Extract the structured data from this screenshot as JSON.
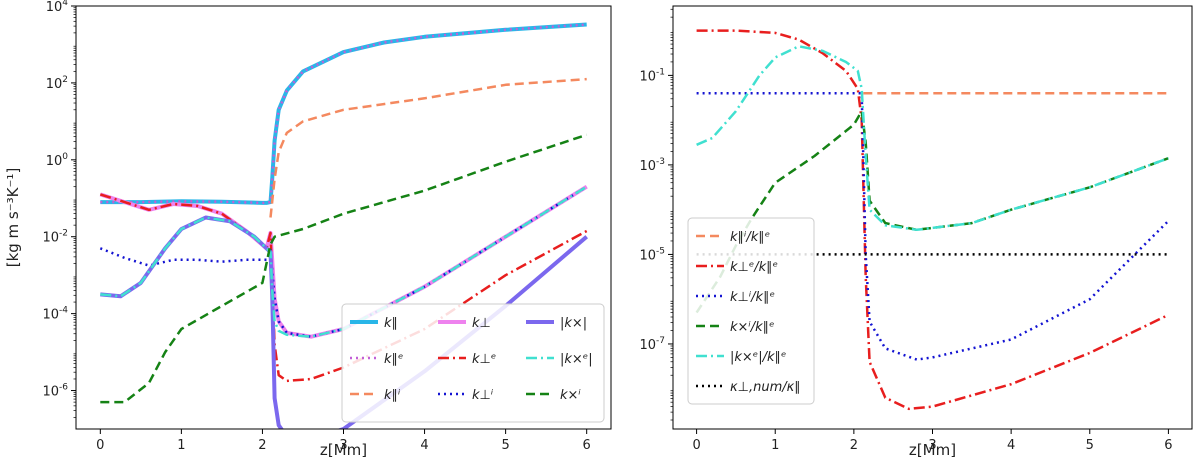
{
  "chart_data": [
    {
      "type": "line",
      "panel": "left",
      "yscale": "log",
      "ylabel": "[kg m s⁻³K⁻¹]",
      "xlabel": "z[Mm]",
      "xlim": [
        -0.3,
        6.3
      ],
      "ylim_exp": [
        -7,
        4
      ],
      "xticks": [
        0,
        1,
        2,
        3,
        4,
        5,
        6
      ],
      "yticks_exp": [
        -6,
        -4,
        -2,
        0,
        2,
        4
      ],
      "legend": {
        "position": "lower-right",
        "columns": 3
      },
      "series": [
        {
          "name": "k∥",
          "color": "#29b6e8",
          "dash": "solid",
          "width": 4,
          "x": [
            0,
            0.5,
            1,
            1.5,
            2,
            2.05,
            2.1,
            2.12,
            2.15,
            2.2,
            2.3,
            2.5,
            3,
            3.5,
            4,
            5,
            6
          ],
          "logy": [
            -1.1,
            -1.1,
            -1.08,
            -1.09,
            -1.12,
            -1.12,
            -1.1,
            -0.5,
            0.5,
            1.3,
            1.8,
            2.3,
            2.8,
            3.05,
            3.2,
            3.38,
            3.52
          ]
        },
        {
          "name": "k∥ᵉ",
          "color": "#c25fd6",
          "dash": "dot",
          "width": 2.5,
          "x": [
            0,
            0.5,
            1,
            1.5,
            2,
            2.05,
            2.1,
            2.12,
            2.15,
            2.2,
            2.3,
            2.5,
            3,
            3.5,
            4,
            5,
            6
          ],
          "logy": [
            -1.1,
            -1.1,
            -1.08,
            -1.09,
            -1.12,
            -1.12,
            -1.1,
            -0.5,
            0.5,
            1.3,
            1.8,
            2.3,
            2.8,
            3.05,
            3.2,
            3.38,
            3.52
          ]
        },
        {
          "name": "k∥ⁱ",
          "color": "#f4895f",
          "dash": "dash",
          "width": 2.5,
          "x": [
            2.1,
            2.15,
            2.2,
            2.3,
            2.5,
            3,
            4,
            5,
            6
          ],
          "logy": [
            -1.5,
            -0.5,
            0.2,
            0.7,
            1.0,
            1.3,
            1.6,
            1.95,
            2.1
          ]
        },
        {
          "name": "k⊥",
          "color": "#ee82ee",
          "dash": "solid",
          "width": 4,
          "x": [
            0,
            0.3,
            0.6,
            0.9,
            1.2,
            1.5,
            1.8,
            2.05,
            2.1,
            2.15,
            2.2,
            2.3,
            2.6,
            3,
            4,
            5,
            6
          ],
          "logy": [
            -0.9,
            -1.1,
            -1.3,
            -1.15,
            -1.2,
            -1.4,
            -1.85,
            -2.3,
            -1.9,
            -3.6,
            -4.2,
            -4.5,
            -4.6,
            -4.4,
            -3.3,
            -2.0,
            -0.7
          ]
        },
        {
          "name": "k⊥ᵉ",
          "color": "#e81e1e",
          "dash": "dashdot",
          "width": 2.5,
          "x": [
            0,
            0.3,
            0.6,
            0.9,
            1.2,
            1.5,
            1.8,
            2.05,
            2.1,
            2.15,
            2.2,
            2.3,
            2.6,
            3,
            4,
            5,
            6
          ],
          "logy": [
            -0.9,
            -1.1,
            -1.3,
            -1.15,
            -1.2,
            -1.4,
            -1.85,
            -2.3,
            -1.9,
            -4.8,
            -5.6,
            -5.75,
            -5.7,
            -5.4,
            -4.4,
            -3.0,
            -1.85
          ]
        },
        {
          "name": "k⊥ⁱ",
          "color": "#1414d2",
          "dash": "dot",
          "width": 2.5,
          "x": [
            0,
            0.3,
            0.6,
            0.9,
            1.2,
            1.5,
            1.8,
            2.05,
            2.1,
            2.15,
            2.2,
            2.3,
            2.6,
            3,
            4,
            5,
            6
          ],
          "logy": [
            -2.3,
            -2.55,
            -2.75,
            -2.6,
            -2.6,
            -2.65,
            -2.6,
            -2.6,
            -2.35,
            -3.6,
            -4.2,
            -4.5,
            -4.6,
            -4.4,
            -3.3,
            -2.0,
            -0.7
          ]
        },
        {
          "name": "|k×|",
          "color": "#7b68ee",
          "dash": "solid",
          "width": 4,
          "x": [
            0,
            0.25,
            0.5,
            0.8,
            1.0,
            1.3,
            1.6,
            1.9,
            2.05,
            2.1,
            2.12,
            2.15,
            2.2,
            2.3,
            2.55,
            3,
            4,
            5,
            6
          ],
          "logy": [
            -3.5,
            -3.55,
            -3.2,
            -2.3,
            -1.8,
            -1.5,
            -1.6,
            -2.0,
            -2.3,
            -2.4,
            -3.5,
            -6.2,
            -6.9,
            -7.2,
            -7.3,
            -7.0,
            -5.5,
            -3.8,
            -2.0
          ]
        },
        {
          "name": "|k×ᵉ|",
          "color": "#40e0d0",
          "dash": "dashdot",
          "width": 2.5,
          "x": [
            0,
            0.25,
            0.5,
            0.8,
            1.0,
            1.3,
            1.6,
            1.9,
            2.05,
            2.1,
            2.12,
            2.15,
            2.2,
            2.3,
            2.6,
            3,
            4,
            5,
            6
          ],
          "logy": [
            -3.5,
            -3.55,
            -3.2,
            -2.3,
            -1.8,
            -1.5,
            -1.6,
            -2.0,
            -2.3,
            -2.4,
            -3.4,
            -4.2,
            -4.45,
            -4.55,
            -4.6,
            -4.4,
            -3.3,
            -2.0,
            -0.7
          ]
        },
        {
          "name": "k×ⁱ",
          "color": "#158215",
          "dash": "dash",
          "width": 2.5,
          "x": [
            0,
            0.3,
            0.6,
            0.8,
            1.0,
            1.5,
            2.0,
            2.1,
            2.15,
            2.5,
            3,
            4,
            5,
            6
          ],
          "logy": [
            -6.3,
            -6.3,
            -5.8,
            -5.0,
            -4.4,
            -3.8,
            -3.2,
            -2.2,
            -2.0,
            -1.8,
            -1.4,
            -0.8,
            -0.05,
            0.65
          ]
        }
      ]
    },
    {
      "type": "line",
      "panel": "right",
      "yscale": "log",
      "xlabel": "z[Mm]",
      "ylabel": "",
      "xlim": [
        -0.3,
        6.3
      ],
      "ylim_exp": [
        -8.9,
        0.55
      ],
      "xticks": [
        0,
        1,
        2,
        3,
        4,
        5,
        6
      ],
      "yticks_exp": [
        -7,
        -5,
        -3,
        -1
      ],
      "legend": {
        "position": "center-left",
        "columns": 1
      },
      "series": [
        {
          "name": "k∥ⁱ/k∥ᵉ",
          "color": "#f4895f",
          "dash": "dash",
          "width": 2.5,
          "x": [
            2.12,
            3,
            6
          ],
          "logy": [
            -1.4,
            -1.4,
            -1.4
          ]
        },
        {
          "name": "k⊥ᵉ/k∥ᵉ",
          "color": "#e81e1e",
          "dash": "dashdot",
          "width": 2.5,
          "x": [
            0,
            0.5,
            1.0,
            1.3,
            1.6,
            1.9,
            2.05,
            2.1,
            2.15,
            2.2,
            2.4,
            2.7,
            3,
            4,
            5,
            6
          ],
          "logy": [
            0,
            0,
            -0.05,
            -0.2,
            -0.5,
            -0.9,
            -1.3,
            -2.0,
            -5.5,
            -7.4,
            -8.2,
            -8.45,
            -8.4,
            -7.9,
            -7.2,
            -6.35
          ]
        },
        {
          "name": "k⊥ⁱ/k∥ᵉ",
          "color": "#1414d2",
          "dash": "dot",
          "width": 2.5,
          "x": [
            0,
            1,
            2,
            2.1,
            2.15,
            2.2,
            2.4,
            2.8,
            3,
            4,
            5,
            6
          ],
          "logy": [
            -1.4,
            -1.4,
            -1.4,
            -1.4,
            -5.0,
            -6.5,
            -7.1,
            -7.35,
            -7.3,
            -6.9,
            -6.0,
            -4.25
          ]
        },
        {
          "name": "k×ⁱ/k∥ᵉ",
          "color": "#158215",
          "dash": "dash",
          "width": 2.5,
          "x": [
            0,
            0.3,
            0.5,
            0.7,
            1.0,
            1.5,
            2.0,
            2.1,
            2.15,
            2.2,
            2.4,
            2.8,
            3.5,
            4,
            5,
            6
          ],
          "logy": [
            -6.3,
            -5.5,
            -4.8,
            -4.2,
            -3.4,
            -2.8,
            -2.1,
            -1.8,
            -2.5,
            -3.8,
            -4.3,
            -4.45,
            -4.3,
            -4.0,
            -3.5,
            -2.85
          ]
        },
        {
          "name": "|k×ᵉ|/k∥ᵉ",
          "color": "#40e0d0",
          "dash": "dashdot",
          "width": 2.5,
          "x": [
            0,
            0.2,
            0.5,
            0.8,
            1.0,
            1.3,
            1.6,
            1.9,
            2.05,
            2.1,
            2.15,
            2.2,
            2.4,
            2.8,
            3.5,
            4,
            5,
            6
          ],
          "logy": [
            -2.55,
            -2.4,
            -1.8,
            -1.0,
            -0.6,
            -0.35,
            -0.45,
            -0.7,
            -0.9,
            -1.3,
            -2.8,
            -4.0,
            -4.35,
            -4.45,
            -4.3,
            -4.0,
            -3.5,
            -2.85
          ]
        },
        {
          "name": "κ⊥,num/κ∥",
          "color": "#000000",
          "dash": "dot",
          "width": 2.5,
          "x": [
            0,
            6
          ],
          "logy": [
            -5,
            -5
          ]
        }
      ]
    }
  ]
}
